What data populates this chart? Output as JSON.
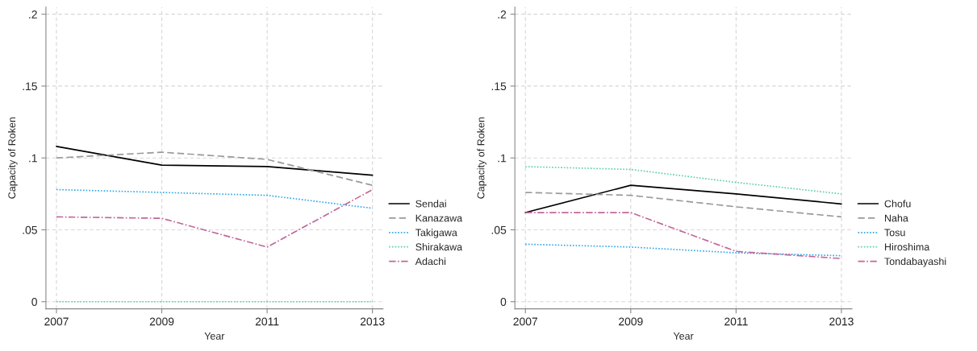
{
  "chart_data": [
    {
      "type": "line",
      "xlabel": "Year",
      "ylabel": "Capacity of Roken",
      "x": [
        2007,
        2009,
        2011,
        2013
      ],
      "xlim": [
        2006.8,
        2013.2
      ],
      "xticks": [
        2007,
        2009,
        2011,
        2013
      ],
      "ylim": [
        -0.005,
        0.205
      ],
      "yticks": [
        {
          "value": 0,
          "label": "0"
        },
        {
          "value": 0.05,
          "label": ".05"
        },
        {
          "value": 0.1,
          "label": ".1"
        },
        {
          "value": 0.15,
          "label": ".15"
        },
        {
          "value": 0.2,
          "label": ".2"
        }
      ],
      "grid": true,
      "legend": "right",
      "marker": "none",
      "series": [
        {
          "name": "Sendai",
          "color": "#000000",
          "line_style": "solid",
          "values": [
            0.108,
            0.095,
            0.094,
            0.088
          ]
        },
        {
          "name": "Kanazawa",
          "color": "#999999",
          "line_style": "dashed",
          "values": [
            0.1,
            0.104,
            0.099,
            0.081
          ]
        },
        {
          "name": "Takigawa",
          "color": "#33a9e6",
          "line_style": "dotted",
          "values": [
            0.078,
            0.076,
            0.074,
            0.065
          ]
        },
        {
          "name": "Shirakawa",
          "color": "#5fcfb0",
          "line_style": "dotted",
          "values": [
            0,
            0,
            0,
            0
          ]
        },
        {
          "name": "Adachi",
          "color": "#c2679a",
          "line_style": "dashdot",
          "values": [
            0.059,
            0.058,
            0.038,
            0.078
          ]
        }
      ]
    },
    {
      "type": "line",
      "xlabel": "Year",
      "ylabel": "Capacity of Roken",
      "x": [
        2007,
        2009,
        2011,
        2013
      ],
      "xlim": [
        2006.8,
        2013.2
      ],
      "xticks": [
        2007,
        2009,
        2011,
        2013
      ],
      "ylim": [
        -0.005,
        0.205
      ],
      "yticks": [
        {
          "value": 0,
          "label": "0"
        },
        {
          "value": 0.05,
          "label": ".05"
        },
        {
          "value": 0.1,
          "label": ".1"
        },
        {
          "value": 0.15,
          "label": ".15"
        },
        {
          "value": 0.2,
          "label": ".2"
        }
      ],
      "grid": true,
      "legend": "right",
      "marker": "none",
      "series": [
        {
          "name": "Chofu",
          "color": "#000000",
          "line_style": "solid",
          "values": [
            0.062,
            0.081,
            0.075,
            0.068
          ]
        },
        {
          "name": "Naha",
          "color": "#999999",
          "line_style": "dashed",
          "values": [
            0.076,
            0.074,
            0.066,
            0.059
          ]
        },
        {
          "name": "Tosu",
          "color": "#33a9e6",
          "line_style": "dotted",
          "values": [
            0.04,
            0.038,
            0.034,
            0.032
          ]
        },
        {
          "name": "Hiroshima",
          "color": "#5fcfb0",
          "line_style": "dotted",
          "values": [
            0.094,
            0.092,
            0.083,
            0.075
          ]
        },
        {
          "name": "Tondabayashi",
          "color": "#c2679a",
          "line_style": "dashdot",
          "values": [
            0.062,
            0.062,
            0.035,
            0.03
          ]
        }
      ]
    }
  ]
}
